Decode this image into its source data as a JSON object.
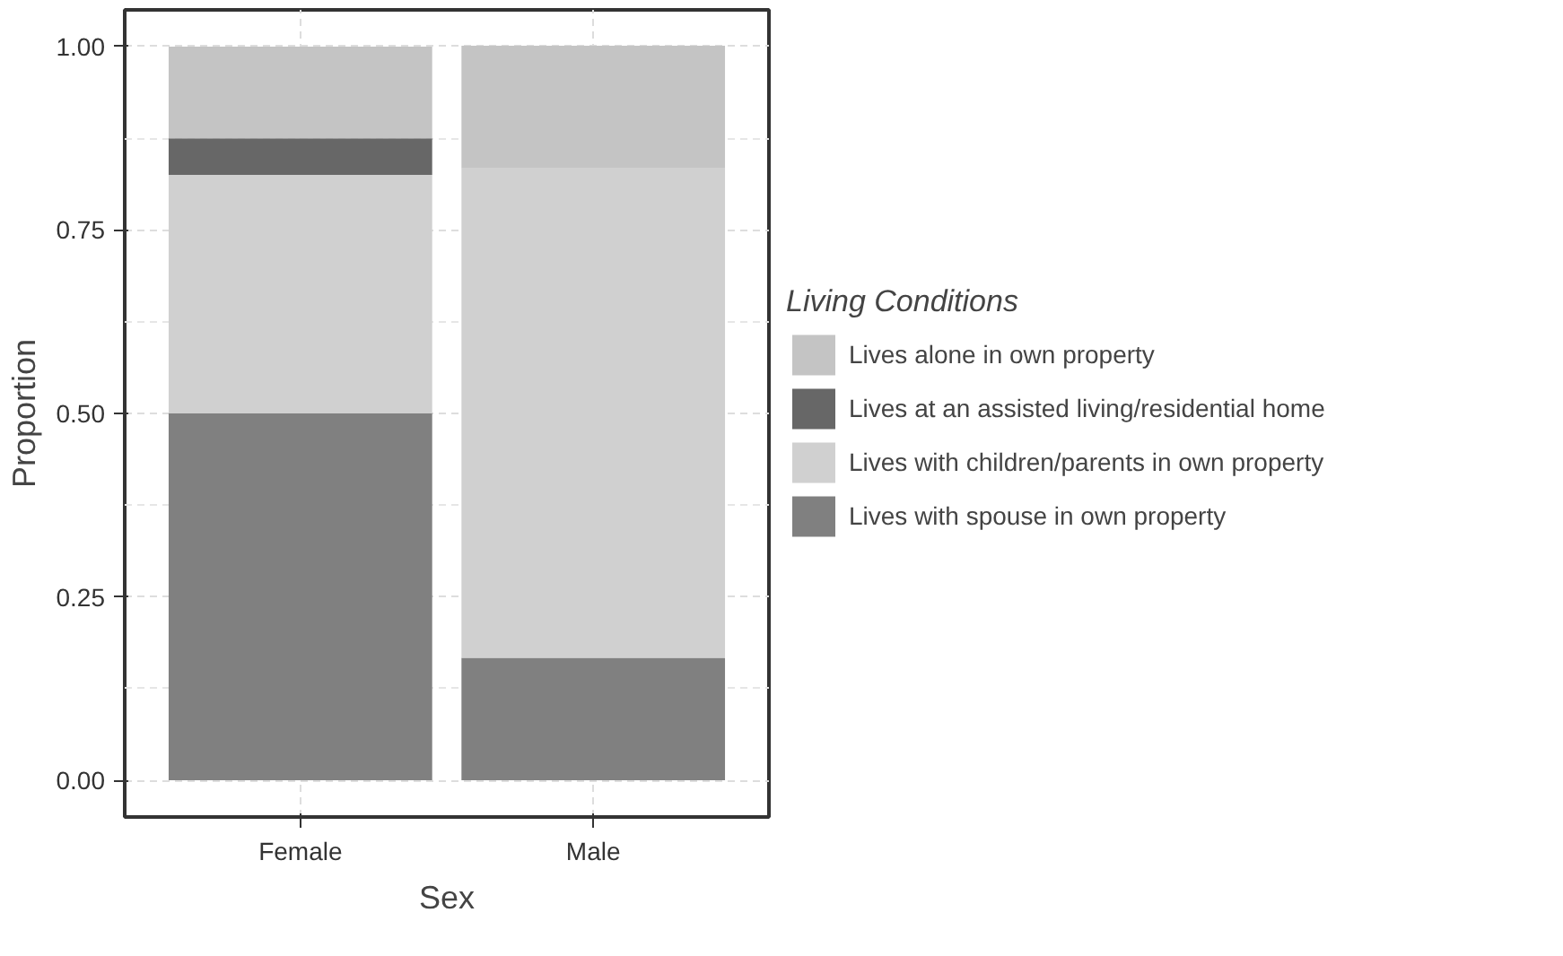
{
  "chart_data": {
    "type": "bar",
    "stacked": true,
    "xlabel": "Sex",
    "ylabel": "Proportion",
    "legend_title": "Living Conditions",
    "categories": [
      "Female",
      "Male"
    ],
    "series": [
      {
        "name": "Lives with spouse in own property",
        "color": "#808080",
        "values": [
          0.5,
          0.167
        ]
      },
      {
        "name": "Lives with children/parents in own property",
        "color": "#d0d0d0",
        "values": [
          0.325,
          0.667
        ]
      },
      {
        "name": "Lives at an assisted living/residential home",
        "color": "#676767",
        "values": [
          0.05,
          0
        ]
      },
      {
        "name": "Lives alone in own property",
        "color": "#c4c4c4",
        "values": [
          0.125,
          0.167
        ]
      }
    ],
    "ylim": [
      -0.05,
      1.05
    ],
    "yticks": [
      {
        "value": 0,
        "label": "0.00"
      },
      {
        "value": 0.25,
        "label": "0.25"
      },
      {
        "value": 0.5,
        "label": "0.50"
      },
      {
        "value": 0.75,
        "label": "0.75"
      },
      {
        "value": 1,
        "label": "1.00"
      }
    ],
    "grid": true,
    "legend": "right"
  }
}
